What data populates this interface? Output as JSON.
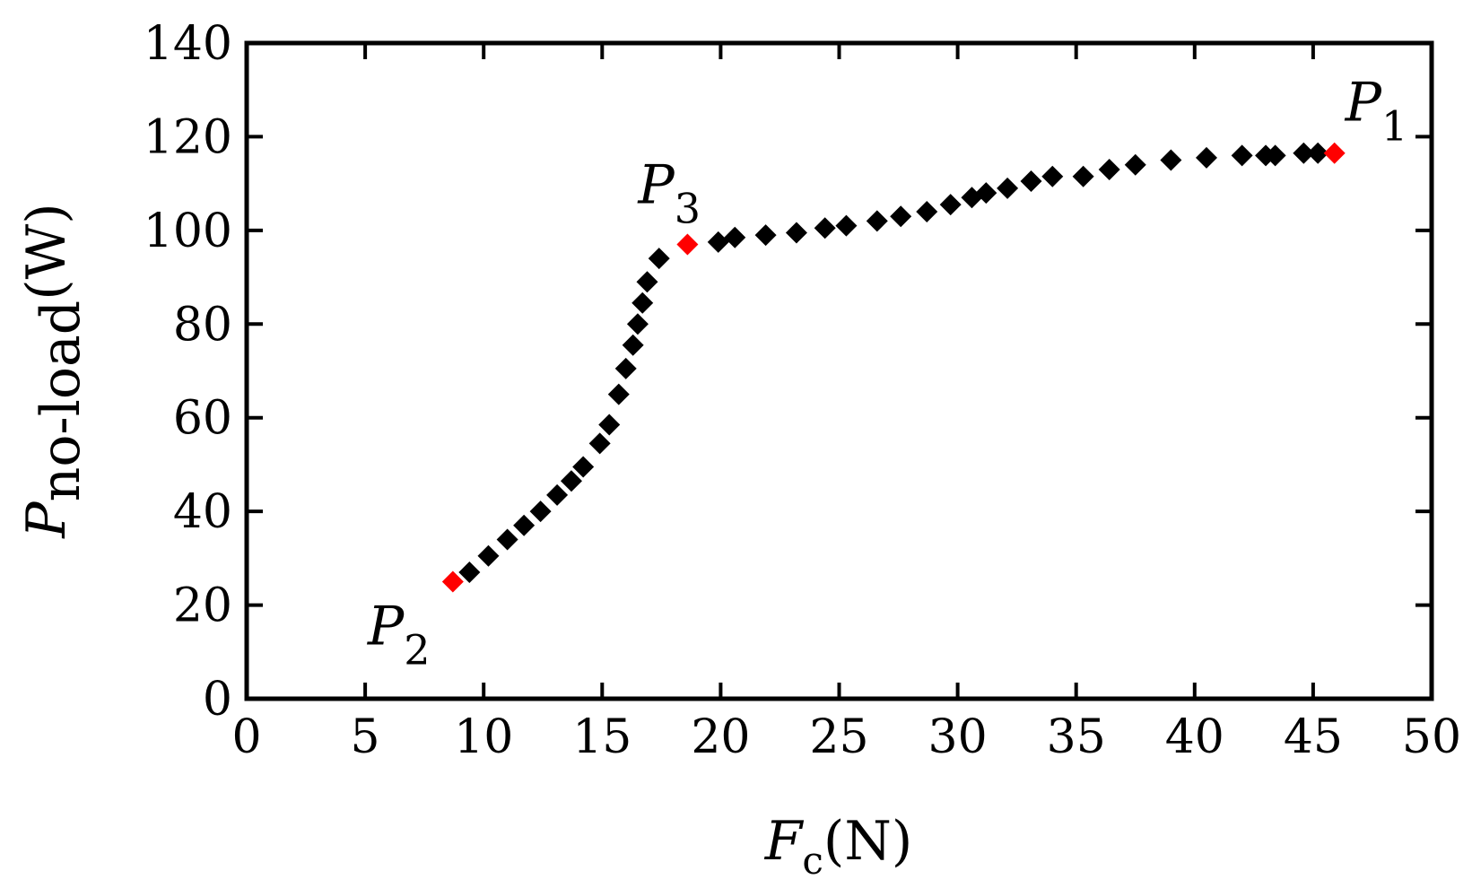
{
  "chart_data": {
    "type": "scatter",
    "xlabel": {
      "main": "F",
      "sub": "c",
      "unit": "(N)"
    },
    "ylabel": {
      "main": "P",
      "sub": "no-load",
      "unit": "(W)"
    },
    "xlim": [
      0,
      50
    ],
    "ylim": [
      0,
      140
    ],
    "xticks": [
      0,
      5,
      10,
      15,
      20,
      25,
      30,
      35,
      40,
      45,
      50
    ],
    "yticks": [
      0,
      20,
      40,
      60,
      80,
      100,
      120,
      140
    ],
    "grid": false,
    "marker": "diamond",
    "series": [
      {
        "color": "#000000",
        "points": [
          [
            9.4,
            27
          ],
          [
            10.2,
            30.5
          ],
          [
            11.0,
            34
          ],
          [
            11.7,
            37
          ],
          [
            12.4,
            40
          ],
          [
            13.1,
            43.5
          ],
          [
            13.7,
            46.5
          ],
          [
            14.2,
            49.5
          ],
          [
            14.9,
            54.5
          ],
          [
            15.3,
            58.5
          ],
          [
            15.7,
            65
          ],
          [
            16.0,
            70.5
          ],
          [
            16.3,
            75.5
          ],
          [
            16.5,
            80
          ],
          [
            16.7,
            84.5
          ],
          [
            16.9,
            89
          ],
          [
            17.4,
            94
          ],
          [
            19.9,
            97.5
          ],
          [
            20.6,
            98.5
          ],
          [
            21.9,
            99
          ],
          [
            23.2,
            99.5
          ],
          [
            24.4,
            100.5
          ],
          [
            25.3,
            101
          ],
          [
            26.6,
            102
          ],
          [
            27.6,
            103
          ],
          [
            28.7,
            104
          ],
          [
            29.7,
            105.5
          ],
          [
            30.6,
            107
          ],
          [
            31.2,
            108
          ],
          [
            32.1,
            109
          ],
          [
            33.1,
            110.5
          ],
          [
            34.0,
            111.5
          ],
          [
            35.3,
            111.5
          ],
          [
            36.4,
            113
          ],
          [
            37.5,
            114
          ],
          [
            39.0,
            115
          ],
          [
            40.5,
            115.5
          ],
          [
            42.0,
            116
          ],
          [
            43.0,
            116
          ],
          [
            43.4,
            116
          ],
          [
            44.6,
            116.5
          ],
          [
            45.2,
            116.5
          ]
        ]
      },
      {
        "color": "#ff0000",
        "points": [
          [
            8.7,
            25
          ],
          [
            18.6,
            97
          ],
          [
            45.9,
            116.5
          ]
        ]
      }
    ],
    "annotations": [
      {
        "main": "P",
        "sub": "1",
        "x": 45.9,
        "y": 116.5
      },
      {
        "main": "P",
        "sub": "2",
        "x": 8.7,
        "y": 25
      },
      {
        "main": "P",
        "sub": "3",
        "x": 18.6,
        "y": 97
      }
    ]
  }
}
